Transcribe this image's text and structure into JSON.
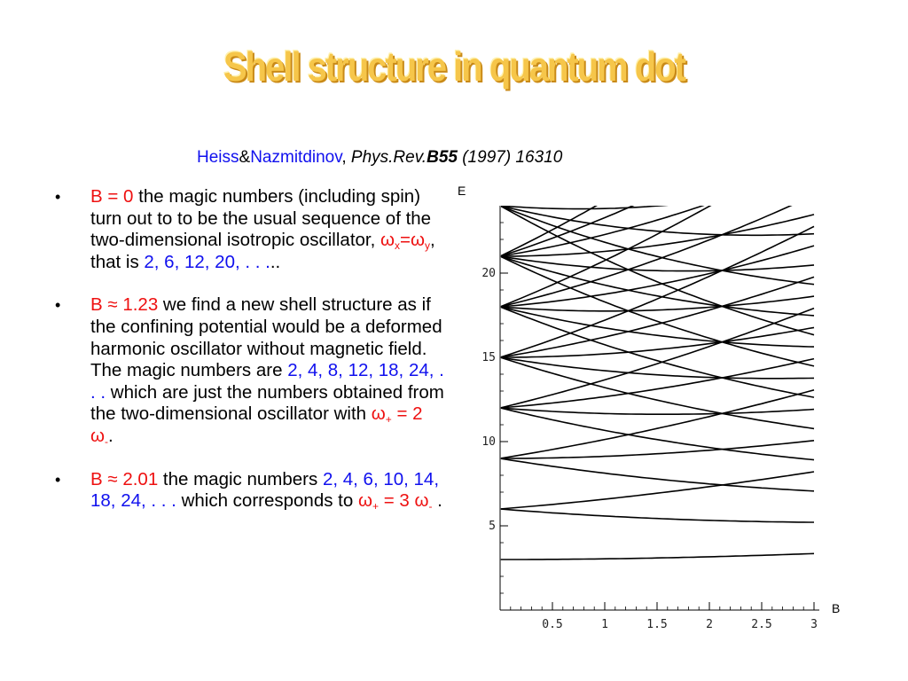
{
  "title": "Shell structure in quantum dot",
  "citation": {
    "author1": "Heiss",
    "amp": "&",
    "author2": "Nazmitdinov",
    "comma": ",",
    "journal": "Phys.Rev.",
    "volume": "B55",
    "rest": "(1997) 16310"
  },
  "bullets": [
    {
      "b_label": "B = 0",
      "text1": " the magic numbers (including spin) turn out to to be the usual sequence of the two-dimensional isotropic oscillator, ",
      "omega": "ω",
      "sub_x": "x",
      "eq": "=ω",
      "sub_y": "y",
      "text2": ", that is ",
      "numbers": "2, 6, 12, 20, . . .",
      "tail": ".."
    },
    {
      "b_label": "B ≈ 1.23",
      "text1": " we find a new shell structure as if the confining potential would be a deformed harmonic oscillator without magnetic field. The magic numbers are ",
      "numbers": "2, 4, 8, 12, 18, 24, . . .",
      "text2": " which are just the numbers obtained from the two-dimensional oscillator with ",
      "omega1": "ω",
      "sub_plus": "+",
      "mid": " = 2 ω",
      "sub_minus": "-",
      "tail": "."
    },
    {
      "b_label": "B ≈ 2.01",
      "text1": " the magic numbers ",
      "numbers": "2, 4, 6, 10, 14, 18, 24, . . .",
      "text2": " which corresponds to ",
      "omega1": "ω",
      "sub_plus": "+",
      "mid": " = 3 ω",
      "sub_minus": "-",
      "tail": " ."
    }
  ],
  "colors": {
    "number_blue": "#1010ee",
    "label_red": "#ee1010",
    "title_gold": "#f6c64a"
  },
  "chart_data": {
    "type": "line",
    "xlabel": "B",
    "ylabel": "E",
    "xlim": [
      0,
      3
    ],
    "ylim": [
      0,
      24
    ],
    "x_ticks": [
      0.5,
      1,
      1.5,
      2,
      2.5,
      3
    ],
    "x_tick_labels": [
      "0.5",
      "1",
      "1.5",
      "2",
      "2.5",
      "3"
    ],
    "y_ticks": [
      5,
      10,
      15,
      20
    ],
    "y_tick_labels": [
      "5",
      "10",
      "15",
      "20"
    ],
    "grid": false,
    "description_series": "Fock-Darwin single-particle energy levels E(n,m) versus magnetic field B",
    "omega0": 3,
    "n_max": 7,
    "m_range": [
      -7,
      7
    ]
  }
}
